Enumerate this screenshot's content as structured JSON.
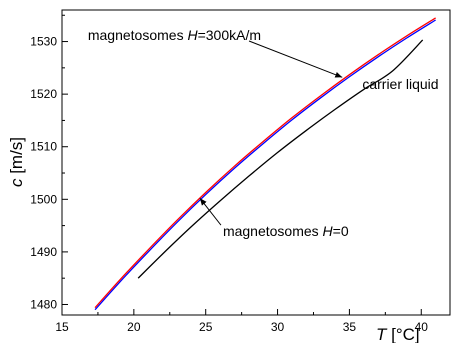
{
  "chart_data": {
    "type": "line",
    "xlabel_var": "T",
    "xlabel_unit": " [°C]",
    "ylabel_var": "c",
    "ylabel_unit": " [m/s]",
    "xlim": [
      15,
      42
    ],
    "ylim": [
      1478,
      1536
    ],
    "xticks": [
      15,
      20,
      25,
      30,
      35,
      40
    ],
    "yticks": [
      1480,
      1490,
      1500,
      1510,
      1520,
      1530
    ],
    "grid": false,
    "series": [
      {
        "name": "carrier liquid",
        "color": "#000000",
        "x": [
          20.3,
          22,
          24,
          26,
          28,
          30,
          32,
          34,
          36,
          38,
          40.1
        ],
        "y": [
          1485,
          1489.6,
          1494.8,
          1499.7,
          1504.4,
          1508.9,
          1513.1,
          1517.1,
          1520.9,
          1524.4,
          1530.3
        ]
      },
      {
        "name": "magnetosomes H=0",
        "color": "#0000ff",
        "x": [
          17.3,
          19,
          21,
          23,
          25,
          27,
          29,
          31,
          33,
          35,
          37,
          39,
          41
        ],
        "y": [
          1479,
          1484.2,
          1490,
          1495.6,
          1500.9,
          1505.9,
          1510.6,
          1515.1,
          1519.3,
          1523.3,
          1527.1,
          1530.7,
          1534.1
        ]
      },
      {
        "name": "magnetosomes H=300kA/m",
        "color": "#ff0000",
        "x": [
          17.3,
          19,
          21,
          23,
          25,
          27,
          29,
          31,
          33,
          35,
          37,
          39,
          41
        ],
        "y": [
          1479.4,
          1484.6,
          1490.4,
          1496,
          1501.3,
          1506.3,
          1511,
          1515.5,
          1519.7,
          1523.7,
          1527.5,
          1531.1,
          1534.5
        ]
      }
    ],
    "annotations": [
      {
        "pre": "magnetosomes ",
        "italic": "H",
        "post": "=300kA/m",
        "x": 16.8,
        "y": 1530.3,
        "arrow_to": [
          34.5,
          1523.2
        ]
      },
      {
        "pre": "carrier liquid",
        "italic": "",
        "post": "",
        "x": 35.9,
        "y": 1521,
        "arrow_to": null
      },
      {
        "pre": "magnetosomes ",
        "italic": "H",
        "post": "=0",
        "x": 26.2,
        "y": 1493,
        "arrow_to": [
          24.6,
          1500.2
        ]
      }
    ]
  }
}
